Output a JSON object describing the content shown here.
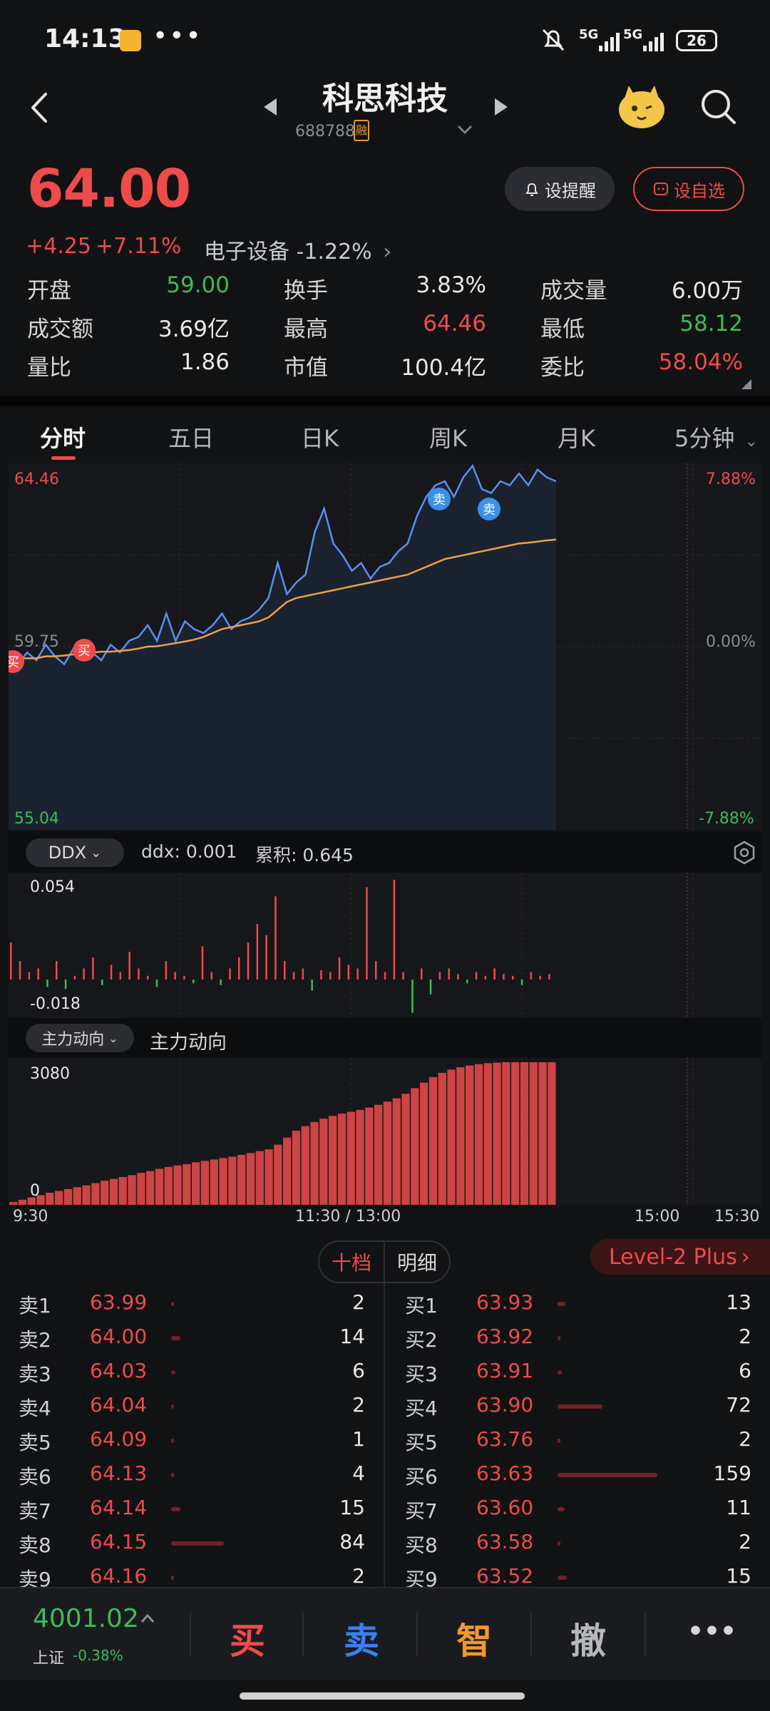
{
  "status_bar": {
    "time": "14:13",
    "dots": "•••",
    "sig1": "5G",
    "sig2": "5G",
    "battery": "26"
  },
  "header": {
    "title": "科思科技",
    "code": "688788",
    "code_badge": "融"
  },
  "quote": {
    "price": "64.00",
    "change": "+4.25",
    "change_pct": "+7.11%",
    "sector": "电子设备 -1.22%",
    "alert_btn": "设提醒",
    "fav_btn": "设自选",
    "stats": [
      {
        "label": "开盘",
        "value": "59.00",
        "color": "green"
      },
      {
        "label": "换手",
        "value": "3.83%",
        "color": "white"
      },
      {
        "label": "成交量",
        "value": "6.00万",
        "color": "white"
      },
      {
        "label": "成交额",
        "value": "3.69亿",
        "color": "white"
      },
      {
        "label": "最高",
        "value": "64.46",
        "color": "red"
      },
      {
        "label": "最低",
        "value": "58.12",
        "color": "green"
      },
      {
        "label": "量比",
        "value": "1.86",
        "color": "white"
      },
      {
        "label": "市值",
        "value": "100.4亿",
        "color": "white"
      },
      {
        "label": "委比",
        "value": "58.04%",
        "color": "red"
      }
    ]
  },
  "tabs": [
    "分时",
    "五日",
    "日K",
    "周K",
    "月K",
    "5分钟"
  ],
  "chart": {
    "high": "64.46",
    "mid": "59.75",
    "low": "55.04",
    "pct_high": "7.88%",
    "pct_mid": "0.00%",
    "pct_low": "-7.88%",
    "buy_marker": "买",
    "sell_marker": "卖",
    "colors": {
      "price_line": "#5b8ff0",
      "avg_line": "#f0a04b",
      "up": "#ef4b4b",
      "down": "#3fba5a"
    }
  },
  "chart_data": [
    {
      "type": "line",
      "series": [
        {
          "values": [
            59.5,
            59.3,
            59.6,
            59.4,
            59.8,
            59.5,
            59.3,
            59.7,
            59.5,
            59.6,
            59.4,
            59.8,
            59.6,
            59.9,
            60.0,
            60.3,
            59.9,
            60.6,
            59.9,
            60.4,
            60.2,
            60.1,
            60.3,
            60.6,
            60.2,
            60.4,
            60.5,
            60.7,
            61.0,
            61.9,
            61.1,
            61.4,
            61.6,
            62.7,
            63.3,
            62.4,
            62.1,
            61.7,
            61.9,
            61.5,
            61.8,
            61.9,
            62.2,
            62.4,
            63.1,
            63.6,
            63.9,
            64.0,
            63.6,
            64.1,
            64.4,
            63.8,
            63.7,
            64.0,
            63.9,
            64.2,
            63.9,
            64.3,
            64.1,
            64.0
          ]
        },
        {
          "values": [
            59.5,
            59.45,
            59.45,
            59.45,
            59.5,
            59.5,
            59.52,
            59.55,
            59.58,
            59.6,
            59.62,
            59.62,
            59.64,
            59.66,
            59.7,
            59.75,
            59.76,
            59.8,
            59.84,
            59.88,
            59.93,
            60.0,
            60.1,
            60.2,
            60.25,
            60.3,
            60.35,
            60.4,
            60.5,
            60.7,
            60.9,
            61.0,
            61.05,
            61.1,
            61.15,
            61.2,
            61.25,
            61.3,
            61.35,
            61.4,
            61.45,
            61.5,
            61.55,
            61.6,
            61.7,
            61.8,
            61.9,
            62.0,
            62.05,
            62.1,
            62.15,
            62.2,
            62.25,
            62.3,
            62.35,
            62.4,
            62.42,
            62.45,
            62.48,
            62.5
          ]
        }
      ],
      "ylim": [
        55.04,
        64.46
      ]
    },
    {
      "type": "bar",
      "series": [
        {
          "values": [
            0.02,
            0.01,
            0.004,
            0.006,
            -0.004,
            0.01,
            -0.005,
            0.002,
            0.006,
            0.012,
            -0.003,
            0.008,
            0.004,
            0.015,
            0.006,
            0.002,
            -0.004,
            0.01,
            0.004,
            0.002,
            -0.002,
            0.018,
            0.004,
            -0.003,
            0.006,
            0.012,
            0.02,
            0.03,
            0.024,
            0.045,
            0.01,
            0.004,
            0.006,
            -0.006,
            0.005,
            0.004,
            0.012,
            0.008,
            0.006,
            0.05,
            0.01,
            0.004,
            0.054,
            0.004,
            -0.018,
            0.006,
            -0.008,
            0.004,
            0.006,
            0.003,
            -0.002,
            0.004,
            0.002,
            0.006,
            0.003,
            0.002,
            -0.003,
            0.004,
            0.002,
            0.003
          ]
        }
      ],
      "ylim": [
        -0.018,
        0.054
      ]
    },
    {
      "type": "bar",
      "series": [
        {
          "values": [
            60,
            110,
            160,
            210,
            260,
            300,
            340,
            380,
            420,
            470,
            520,
            560,
            600,
            640,
            690,
            730,
            780,
            820,
            850,
            880,
            920,
            950,
            980,
            1010,
            1040,
            1080,
            1120,
            1160,
            1200,
            1300,
            1450,
            1600,
            1700,
            1790,
            1860,
            1920,
            1970,
            2010,
            2050,
            2100,
            2160,
            2230,
            2300,
            2400,
            2520,
            2640,
            2760,
            2850,
            2920,
            2970,
            3010,
            3040,
            3060,
            3070,
            3080,
            3080,
            3080,
            3080,
            3080,
            3080
          ]
        }
      ],
      "ylim": [
        0,
        3080
      ]
    }
  ],
  "ddx_bar": {
    "chip": "DDX",
    "ddx": "ddx: 0.001",
    "cum": "累积: 0.645",
    "max": "0.054",
    "min": "-0.018"
  },
  "main_bar": {
    "chip": "主力动向",
    "label": "主力动向",
    "max": "3080",
    "min": "0"
  },
  "time_axis": {
    "t1": "9:30",
    "t2": "11:30 / 13:00",
    "t3": "15:00",
    "t4": "15:30"
  },
  "orderbook": {
    "tab_active": "十档",
    "tab_other": "明细",
    "level2": "Level-2 Plus",
    "sells": [
      {
        "label": "卖1",
        "price": "63.99",
        "vol": "2",
        "bar": 0.02
      },
      {
        "label": "卖2",
        "price": "64.00",
        "vol": "14",
        "bar": 0.09
      },
      {
        "label": "卖3",
        "price": "64.03",
        "vol": "6",
        "bar": 0.04
      },
      {
        "label": "卖4",
        "price": "64.04",
        "vol": "2",
        "bar": 0.02
      },
      {
        "label": "卖5",
        "price": "64.09",
        "vol": "1",
        "bar": 0.01
      },
      {
        "label": "卖6",
        "price": "64.13",
        "vol": "4",
        "bar": 0.03
      },
      {
        "label": "卖7",
        "price": "64.14",
        "vol": "15",
        "bar": 0.09
      },
      {
        "label": "卖8",
        "price": "64.15",
        "vol": "84",
        "bar": 0.53
      },
      {
        "label": "卖9",
        "price": "64.16",
        "vol": "2",
        "bar": 0.02
      }
    ],
    "buys": [
      {
        "label": "买1",
        "price": "63.93",
        "vol": "13",
        "bar": 0.08
      },
      {
        "label": "买2",
        "price": "63.92",
        "vol": "2",
        "bar": 0.02
      },
      {
        "label": "买3",
        "price": "63.91",
        "vol": "6",
        "bar": 0.04
      },
      {
        "label": "买4",
        "price": "63.90",
        "vol": "72",
        "bar": 0.45
      },
      {
        "label": "买5",
        "price": "63.76",
        "vol": "2",
        "bar": 0.02
      },
      {
        "label": "买6",
        "price": "63.63",
        "vol": "159",
        "bar": 1.0
      },
      {
        "label": "买7",
        "price": "63.60",
        "vol": "11",
        "bar": 0.07
      },
      {
        "label": "买8",
        "price": "63.58",
        "vol": "2",
        "bar": 0.02
      },
      {
        "label": "买9",
        "price": "63.52",
        "vol": "15",
        "bar": 0.09
      }
    ]
  },
  "bottom": {
    "index_value": "4001.02",
    "index_name": "上证",
    "index_change": "-0.38%",
    "buy": "买",
    "sell": "卖",
    "smart": "智",
    "cancel": "撤",
    "more": "•••"
  }
}
